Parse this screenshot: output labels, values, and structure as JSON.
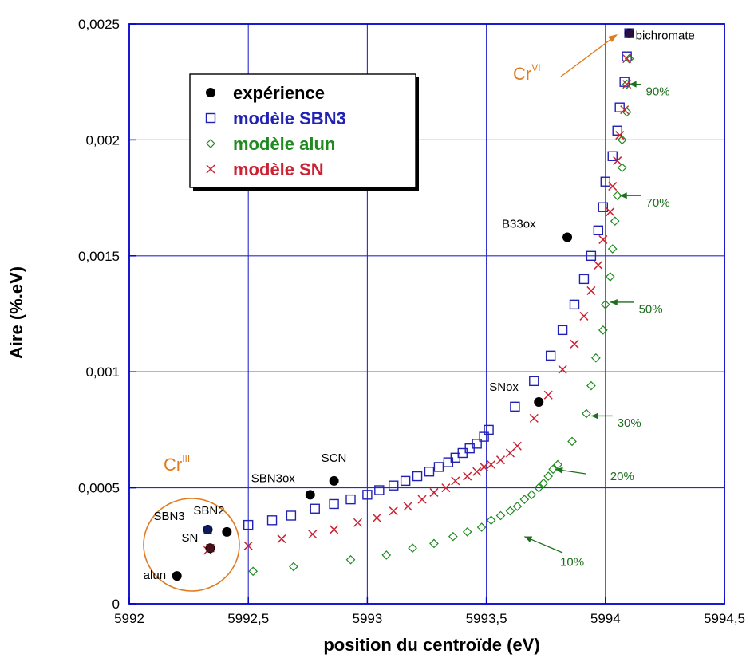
{
  "chart_data": {
    "type": "scatter",
    "xlabel": "position du centroïde (eV)",
    "ylabel": "Aire (%.eV)",
    "xlim": [
      5992,
      5994.5
    ],
    "ylim": [
      0,
      0.0025
    ],
    "xticks": [
      5992,
      5992.5,
      5993,
      5993.5,
      5994,
      5994.5
    ],
    "xtick_labels": [
      "5992",
      "5992,5",
      "5993",
      "5993,5",
      "5994",
      "5994,5"
    ],
    "yticks": [
      0,
      0.0005,
      0.001,
      0.0015,
      0.002,
      0.0025
    ],
    "ytick_labels": [
      "0",
      "0,0005",
      "0,001",
      "0,0015",
      "0,002",
      "0,0025"
    ],
    "grid": true,
    "legend_position": "top-left",
    "series": [
      {
        "name": "expérience",
        "color": "#000000",
        "marker": "filled-circle",
        "points": [
          {
            "x": 5992.2,
            "y": 0.00012,
            "label": "alun"
          },
          {
            "x": 5992.34,
            "y": 0.00024,
            "label": "SN"
          },
          {
            "x": 5992.33,
            "y": 0.00032,
            "label": "SBN3"
          },
          {
            "x": 5992.41,
            "y": 0.00031,
            "label": "SBN2"
          },
          {
            "x": 5992.76,
            "y": 0.00047,
            "label": "SBN3ox"
          },
          {
            "x": 5992.86,
            "y": 0.00053,
            "label": "SCN"
          },
          {
            "x": 5993.72,
            "y": 0.00087,
            "label": "SNox"
          },
          {
            "x": 5993.84,
            "y": 0.00158,
            "label": "B33ox"
          },
          {
            "x": 5994.1,
            "y": 0.00246,
            "label": "bichromate"
          }
        ]
      },
      {
        "name": "modèle SBN3",
        "color": "#2121b5",
        "marker": "open-square",
        "points": [
          [
            5992.5,
            0.00034
          ],
          [
            5992.6,
            0.00036
          ],
          [
            5992.68,
            0.00038
          ],
          [
            5992.78,
            0.00041
          ],
          [
            5992.86,
            0.00043
          ],
          [
            5992.93,
            0.00045
          ],
          [
            5993.0,
            0.00047
          ],
          [
            5993.05,
            0.00049
          ],
          [
            5993.11,
            0.00051
          ],
          [
            5993.16,
            0.00053
          ],
          [
            5993.21,
            0.00055
          ],
          [
            5993.26,
            0.00057
          ],
          [
            5993.3,
            0.00059
          ],
          [
            5993.34,
            0.00061
          ],
          [
            5993.37,
            0.00063
          ],
          [
            5993.4,
            0.00065
          ],
          [
            5993.43,
            0.00067
          ],
          [
            5993.46,
            0.00069
          ],
          [
            5993.49,
            0.00072
          ],
          [
            5993.51,
            0.00075
          ],
          [
            5993.62,
            0.00085
          ],
          [
            5993.7,
            0.00096
          ],
          [
            5993.77,
            0.00107
          ],
          [
            5993.82,
            0.00118
          ],
          [
            5993.87,
            0.00129
          ],
          [
            5993.91,
            0.0014
          ],
          [
            5993.94,
            0.0015
          ],
          [
            5993.97,
            0.00161
          ],
          [
            5993.99,
            0.00171
          ],
          [
            5994.0,
            0.00182
          ],
          [
            5994.03,
            0.00193
          ],
          [
            5994.05,
            0.00204
          ],
          [
            5994.06,
            0.00214
          ],
          [
            5994.08,
            0.00225
          ],
          [
            5994.09,
            0.00236
          ],
          [
            5994.1,
            0.00246
          ]
        ]
      },
      {
        "name": "modèle alun",
        "color": "#1f8a1f",
        "marker": "open-diamond",
        "points": [
          [
            5992.52,
            0.00014
          ],
          [
            5992.69,
            0.00016
          ],
          [
            5992.93,
            0.00019
          ],
          [
            5993.08,
            0.00021
          ],
          [
            5993.19,
            0.00024
          ],
          [
            5993.28,
            0.00026
          ],
          [
            5993.36,
            0.00029
          ],
          [
            5993.42,
            0.00031
          ],
          [
            5993.48,
            0.00033
          ],
          [
            5993.52,
            0.00036
          ],
          [
            5993.56,
            0.00038
          ],
          [
            5993.6,
            0.0004
          ],
          [
            5993.63,
            0.00042
          ],
          [
            5993.66,
            0.00045
          ],
          [
            5993.69,
            0.00047
          ],
          [
            5993.72,
            0.0005
          ],
          [
            5993.74,
            0.00052
          ],
          [
            5993.76,
            0.00055
          ],
          [
            5993.78,
            0.00058
          ],
          [
            5993.8,
            0.0006
          ],
          [
            5993.86,
            0.0007
          ],
          [
            5993.92,
            0.00082
          ],
          [
            5993.94,
            0.00094
          ],
          [
            5993.96,
            0.00106
          ],
          [
            5993.99,
            0.00118
          ],
          [
            5994.0,
            0.00129
          ],
          [
            5994.02,
            0.00141
          ],
          [
            5994.03,
            0.00153
          ],
          [
            5994.04,
            0.00165
          ],
          [
            5994.05,
            0.00176
          ],
          [
            5994.07,
            0.00188
          ],
          [
            5994.07,
            0.002
          ],
          [
            5994.09,
            0.00212
          ],
          [
            5994.09,
            0.00224
          ],
          [
            5994.1,
            0.00235
          ],
          [
            5994.1,
            0.00246
          ]
        ]
      },
      {
        "name": "modèle SN",
        "color": "#cc2233",
        "marker": "cross",
        "points": [
          [
            5992.33,
            0.00023
          ],
          [
            5992.5,
            0.00025
          ],
          [
            5992.64,
            0.00028
          ],
          [
            5992.77,
            0.0003
          ],
          [
            5992.86,
            0.00032
          ],
          [
            5992.96,
            0.00035
          ],
          [
            5993.04,
            0.00037
          ],
          [
            5993.11,
            0.0004
          ],
          [
            5993.17,
            0.00042
          ],
          [
            5993.23,
            0.00045
          ],
          [
            5993.28,
            0.00048
          ],
          [
            5993.33,
            0.0005
          ],
          [
            5993.37,
            0.00053
          ],
          [
            5993.42,
            0.00055
          ],
          [
            5993.46,
            0.00057
          ],
          [
            5993.49,
            0.00059
          ],
          [
            5993.52,
            0.0006
          ],
          [
            5993.56,
            0.00062
          ],
          [
            5993.6,
            0.00065
          ],
          [
            5993.63,
            0.00068
          ],
          [
            5993.7,
            0.0008
          ],
          [
            5993.76,
            0.0009
          ],
          [
            5993.82,
            0.00101
          ],
          [
            5993.87,
            0.00112
          ],
          [
            5993.91,
            0.00124
          ],
          [
            5993.94,
            0.00135
          ],
          [
            5993.97,
            0.00146
          ],
          [
            5993.99,
            0.00157
          ],
          [
            5994.02,
            0.00169
          ],
          [
            5994.03,
            0.0018
          ],
          [
            5994.05,
            0.00191
          ],
          [
            5994.06,
            0.00202
          ],
          [
            5994.08,
            0.00213
          ],
          [
            5994.09,
            0.00224
          ],
          [
            5994.09,
            0.00235
          ],
          [
            5994.1,
            0.00246
          ]
        ]
      }
    ],
    "annotations": {
      "cr3_main": "Cr",
      "cr3_sup": "III",
      "cr6_main": "Cr",
      "cr6_sup": "VI",
      "percent_labels": [
        {
          "text": "10%",
          "x": 5993.81,
          "y": 0.00018
        },
        {
          "text": "20%",
          "x": 5994.02,
          "y": 0.00055
        },
        {
          "text": "30%",
          "x": 5994.05,
          "y": 0.00078
        },
        {
          "text": "50%",
          "x": 5994.14,
          "y": 0.00127
        },
        {
          "text": "70%",
          "x": 5994.17,
          "y": 0.00173
        },
        {
          "text": "90%",
          "x": 5994.17,
          "y": 0.00221
        }
      ]
    },
    "colors": {
      "frame": "#0000cc",
      "grid": "#2a2acc",
      "annotation_orange": "#e07b1f",
      "annotation_green": "#1f6e1f"
    }
  }
}
